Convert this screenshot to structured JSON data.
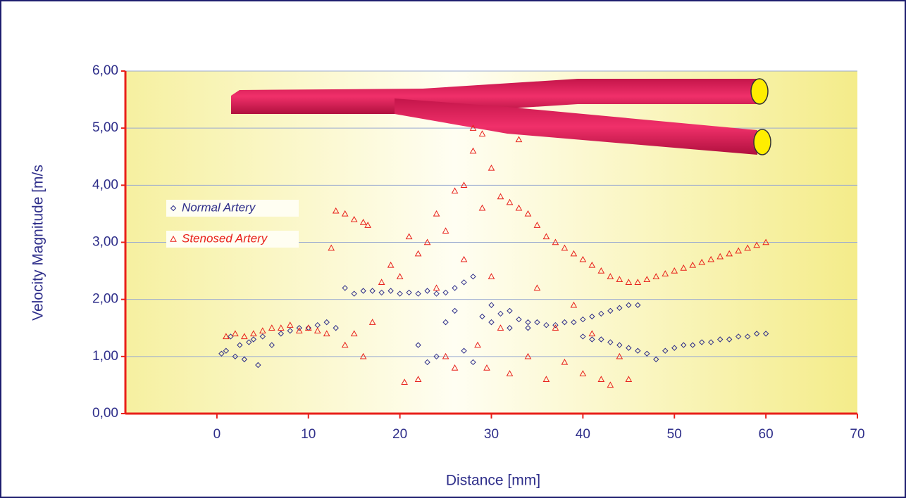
{
  "chart_data": {
    "type": "scatter",
    "x_label": "Distance [mm]",
    "y_label": "Velocity Magnitude [m/s",
    "xlim": [
      -10,
      70
    ],
    "xticks": [
      0,
      10,
      20,
      30,
      40,
      50,
      60,
      70
    ],
    "ylim": [
      0,
      6
    ],
    "yticks": [
      {
        "value": 0,
        "label": "0,00"
      },
      {
        "value": 1,
        "label": "1,00"
      },
      {
        "value": 2,
        "label": "2,00"
      },
      {
        "value": 3,
        "label": "3,00"
      },
      {
        "value": 4,
        "label": "4,00"
      },
      {
        "value": 5,
        "label": "5,00"
      },
      {
        "value": 6,
        "label": "6,00"
      }
    ],
    "grid": true,
    "series": [
      {
        "name": "Normal Artery",
        "color": "#2e2e8a",
        "marker": "diamond",
        "x": [
          0.5,
          1,
          1.5,
          2,
          2.5,
          3,
          3.5,
          4,
          4.5,
          5,
          6,
          7,
          8,
          9,
          10,
          11,
          12,
          13,
          14,
          15,
          16,
          17,
          18,
          19,
          20,
          21,
          22,
          23,
          24,
          25,
          26,
          27,
          28,
          22,
          23,
          24,
          25,
          26,
          27,
          28,
          29,
          30,
          31,
          32,
          33,
          34,
          35,
          36,
          37,
          38,
          39,
          40,
          41,
          42,
          43,
          44,
          45,
          46,
          40,
          41,
          42,
          43,
          44,
          45,
          46,
          47,
          48,
          49,
          50,
          51,
          52,
          53,
          54,
          55,
          56,
          57,
          58,
          59,
          60,
          30,
          32,
          34
        ],
        "values": [
          1.05,
          1.1,
          1.35,
          1.0,
          1.2,
          0.95,
          1.25,
          1.3,
          0.85,
          1.35,
          1.2,
          1.4,
          1.45,
          1.5,
          1.5,
          1.55,
          1.6,
          1.5,
          2.2,
          2.1,
          2.15,
          2.15,
          2.12,
          2.15,
          2.1,
          2.12,
          2.1,
          2.15,
          2.1,
          2.12,
          2.2,
          2.3,
          2.4,
          1.2,
          0.9,
          1.0,
          1.6,
          1.8,
          1.1,
          0.9,
          1.7,
          1.9,
          1.75,
          1.8,
          1.65,
          1.6,
          1.6,
          1.55,
          1.55,
          1.6,
          1.6,
          1.65,
          1.7,
          1.75,
          1.8,
          1.85,
          1.9,
          1.9,
          1.35,
          1.3,
          1.3,
          1.25,
          1.2,
          1.15,
          1.1,
          1.05,
          0.95,
          1.1,
          1.15,
          1.2,
          1.2,
          1.25,
          1.25,
          1.3,
          1.3,
          1.35,
          1.35,
          1.4,
          1.4,
          1.6,
          1.5,
          1.5
        ]
      },
      {
        "name": "Stenosed Artery",
        "color": "#e8201a",
        "marker": "triangle",
        "x": [
          1,
          2,
          3,
          4,
          5,
          6,
          7,
          8,
          9,
          10,
          11,
          12,
          12.5,
          13,
          14,
          15,
          16,
          16.5,
          14,
          15,
          16,
          17,
          18,
          19,
          20,
          20.5,
          21,
          22,
          22,
          23,
          24,
          24,
          25,
          25,
          26,
          26,
          27,
          27,
          28,
          28,
          28.5,
          29,
          29,
          29.5,
          30,
          30,
          31,
          31,
          32,
          32,
          33,
          33,
          34,
          34,
          35,
          35,
          36,
          36,
          37,
          37,
          38,
          38,
          39,
          39,
          40,
          40,
          41,
          41,
          42,
          42,
          43,
          43,
          44,
          44,
          45,
          45,
          46,
          47,
          48,
          49,
          50,
          51,
          52,
          53,
          54,
          55,
          56,
          57,
          58,
          59,
          60
        ],
        "values": [
          1.35,
          1.4,
          1.35,
          1.4,
          1.45,
          1.5,
          1.5,
          1.55,
          1.45,
          1.5,
          1.45,
          1.4,
          2.9,
          3.55,
          3.5,
          3.4,
          3.35,
          3.3,
          1.2,
          1.4,
          1.0,
          1.6,
          2.3,
          2.6,
          2.4,
          0.55,
          3.1,
          0.6,
          2.8,
          3.0,
          2.2,
          3.5,
          1.0,
          3.2,
          3.9,
          0.8,
          4.0,
          2.7,
          4.6,
          5.0,
          1.2,
          4.9,
          3.6,
          0.8,
          4.3,
          2.4,
          3.8,
          1.5,
          3.7,
          0.7,
          4.8,
          3.6,
          3.5,
          1.0,
          3.3,
          2.2,
          3.1,
          0.6,
          3.0,
          1.5,
          2.9,
          0.9,
          2.8,
          1.9,
          2.7,
          0.7,
          2.6,
          1.4,
          2.5,
          0.6,
          2.4,
          0.5,
          2.35,
          1.0,
          2.3,
          0.6,
          2.3,
          2.35,
          2.4,
          2.45,
          2.5,
          2.55,
          2.6,
          2.65,
          2.7,
          2.75,
          2.8,
          2.85,
          2.9,
          2.95,
          3.0
        ]
      }
    ]
  }
}
